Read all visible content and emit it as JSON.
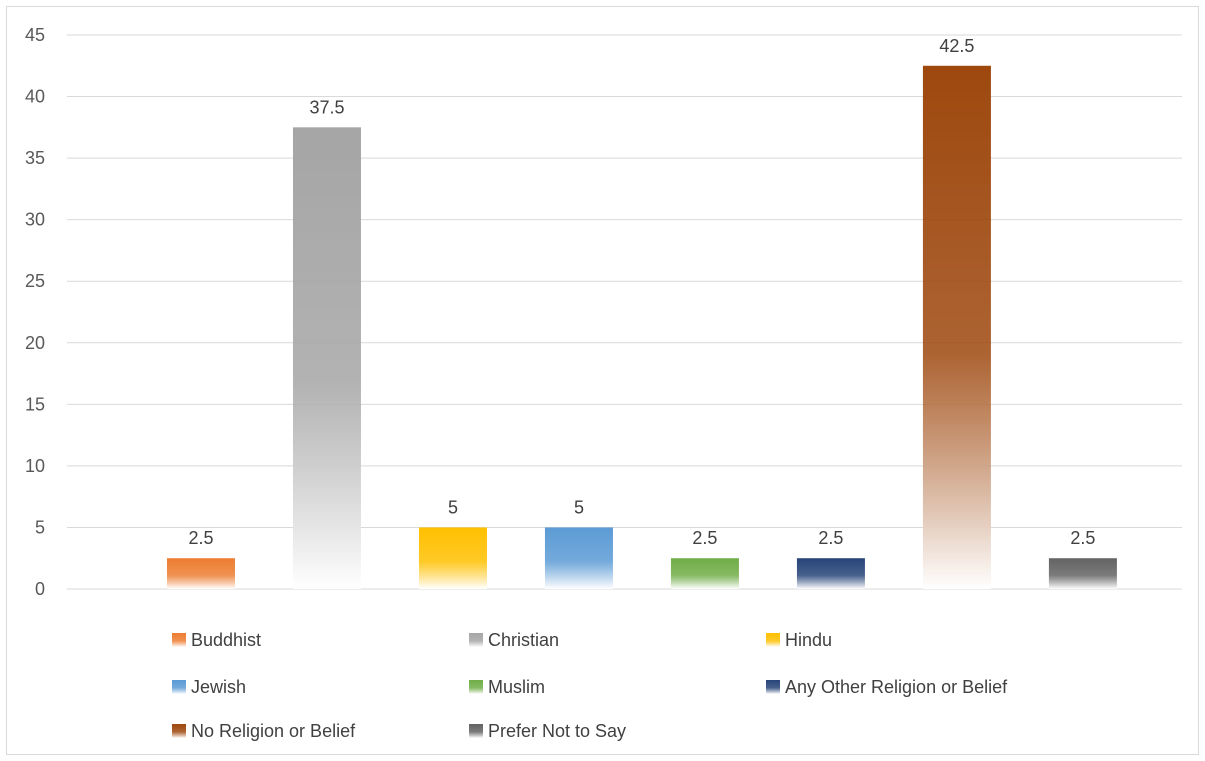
{
  "chart_data": {
    "type": "bar",
    "title": "",
    "xlabel": "",
    "ylabel": "",
    "ylim": [
      0,
      45
    ],
    "yticks": [
      0,
      5,
      10,
      15,
      20,
      25,
      30,
      35,
      40,
      45
    ],
    "grid": true,
    "legend_position": "bottom",
    "categories": [
      "Buddhist",
      "Christian",
      "Hindu",
      "Jewish",
      "Muslim",
      "Any Other Religion or Belief",
      "No Religion or Belief",
      "Prefer Not to Say"
    ],
    "values": [
      2.5,
      37.5,
      5,
      5,
      2.5,
      2.5,
      42.5,
      2.5
    ],
    "data_labels": [
      "2.5",
      "37.5",
      "5",
      "5",
      "2.5",
      "2.5",
      "42.5",
      "2.5"
    ],
    "colors": [
      "#ED7D31",
      "#A5A5A5",
      "#FFC000",
      "#5B9BD5",
      "#70AD47",
      "#264478",
      "#9E480E",
      "#636363"
    ]
  }
}
